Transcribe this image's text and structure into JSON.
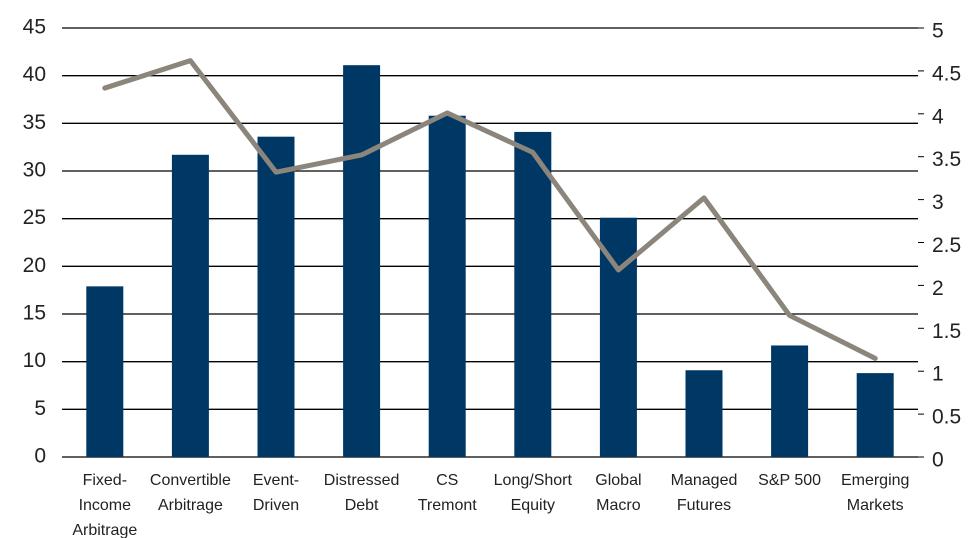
{
  "chart_data": {
    "type": "bar",
    "categories": [
      [
        "Fixed-",
        "Income",
        "Arbitrage"
      ],
      [
        "Convertible",
        "Arbitrage"
      ],
      [
        "Event-",
        "Driven"
      ],
      [
        "Distressed",
        "Debt"
      ],
      [
        "CS",
        "Tremont"
      ],
      [
        "Long/Short",
        "Equity"
      ],
      [
        "Global",
        "Macro"
      ],
      [
        "Managed",
        "Futures"
      ],
      [
        "S&P 500"
      ],
      [
        "Emerging",
        "Markets"
      ]
    ],
    "series": [
      {
        "type": "bar",
        "color": "#003865",
        "values": [
          17.9,
          31.7,
          33.6,
          41.1,
          35.8,
          34.1,
          25.1,
          9.1,
          11.7,
          8.8
        ]
      },
      {
        "type": "line",
        "axis": "y2",
        "color": "#8c857b",
        "values": [
          4.3,
          4.62,
          3.32,
          3.52,
          4.01,
          3.55,
          2.18,
          3.02,
          1.65,
          1.15
        ]
      }
    ],
    "ylim": [
      0,
      45
    ],
    "yticks": [
      0,
      5,
      10,
      15,
      20,
      25,
      30,
      35,
      40,
      45
    ],
    "y2lim": [
      0,
      5
    ],
    "y2ticks": [
      0,
      0.5,
      1,
      1.5,
      2,
      2.5,
      3,
      3.5,
      4,
      4.5,
      5
    ],
    "grid": true
  }
}
